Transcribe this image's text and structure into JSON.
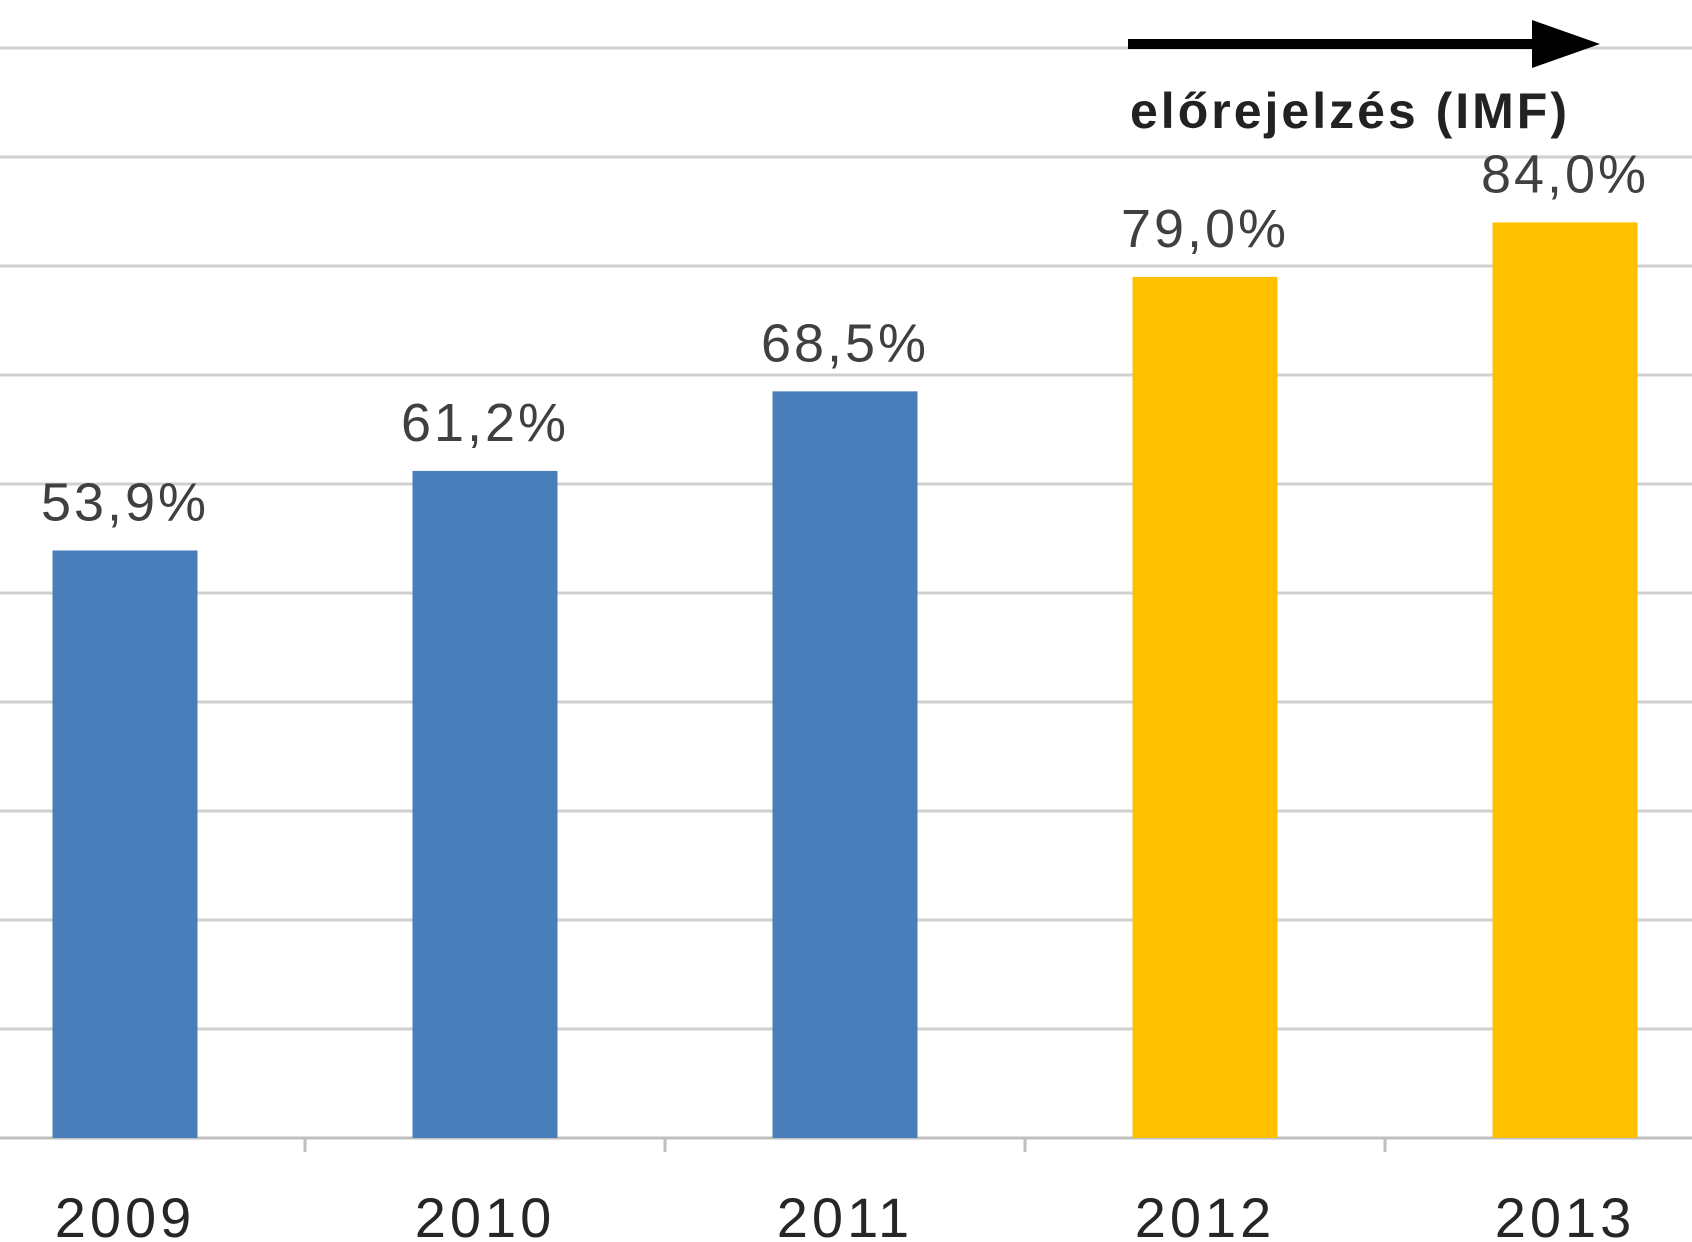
{
  "chart_data": {
    "type": "bar",
    "categories": [
      "2009",
      "2010",
      "2011",
      "2012",
      "2013"
    ],
    "values": [
      53.9,
      61.2,
      68.5,
      79.0,
      84.0
    ],
    "value_labels": [
      "53,9%",
      "61,2%",
      "68,5%",
      "79,0%",
      "84,0%"
    ],
    "ylim": [
      0,
      100
    ],
    "grid": true,
    "annotation": "előrejelzés (IMF)",
    "forecast_categories": [
      "2012",
      "2013"
    ],
    "colors": {
      "actual": "#4A7EBB",
      "forecast": "#FFC000",
      "grid": "#D0D0D0",
      "arrow": "#000000"
    }
  }
}
